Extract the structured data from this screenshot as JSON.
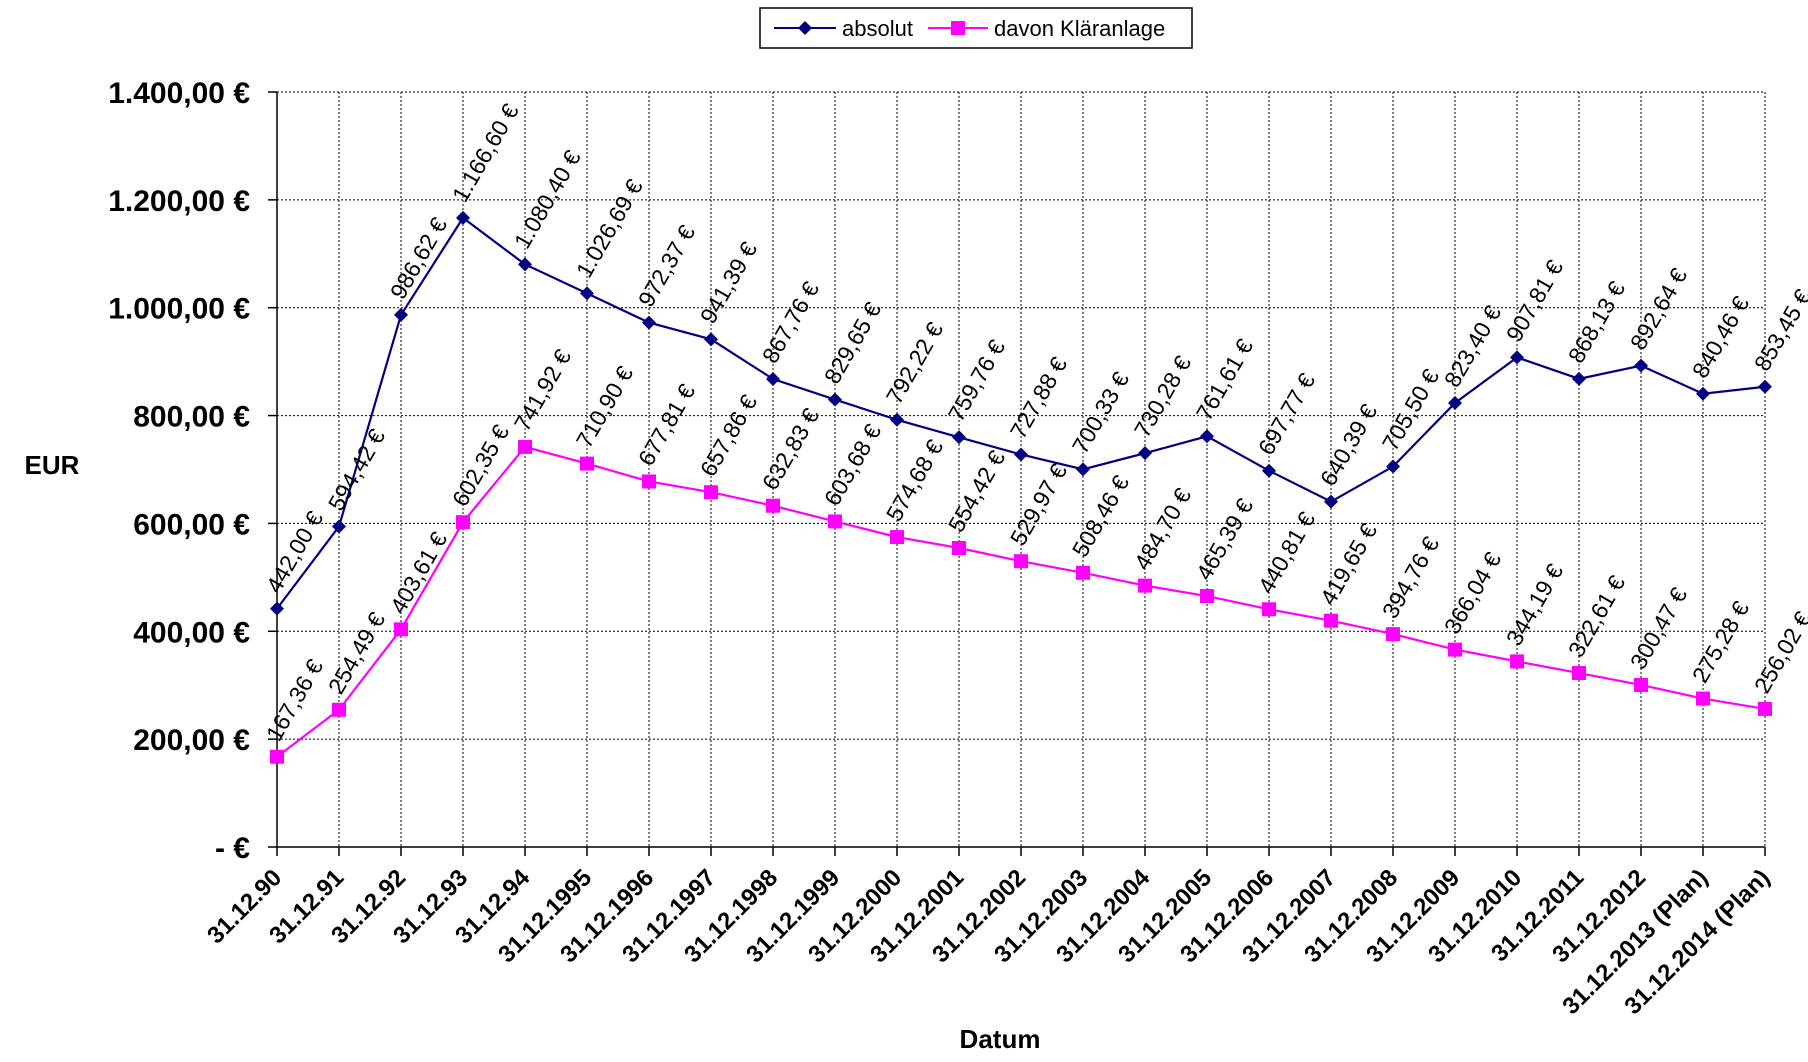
{
  "chart_data": {
    "type": "line",
    "xlabel": "Datum",
    "ylabel": "EUR",
    "ylim": [
      0,
      1400
    ],
    "grid": true,
    "legend_position": "top-center",
    "y_ticks": [
      "-   €",
      "200,00 €",
      "400,00 €",
      "600,00 €",
      "800,00 €",
      "1.000,00 €",
      "1.200,00 €",
      "1.400,00 €"
    ],
    "categories": [
      "31.12.90",
      "31.12.91",
      "31.12.92",
      "31.12.93",
      "31.12.94",
      "31.12.1995",
      "31.12.1996",
      "31.12.1997",
      "31.12.1998",
      "31.12.1999",
      "31.12.2000",
      "31.12.2001",
      "31.12.2002",
      "31.12.2003",
      "31.12.2004",
      "31.12.2005",
      "31.12.2006",
      "31.12.2007",
      "31.12.2008",
      "31.12.2009",
      "31.12.2010",
      "31.12.2011",
      "31.12.2012",
      "31.12.2013 (Plan)",
      "31.12.2014 (Plan)"
    ],
    "series": [
      {
        "name": "absolut",
        "color": "#000080",
        "marker": "diamond",
        "values": [
          442.0,
          594.42,
          986.62,
          1166.6,
          1080.4,
          1026.69,
          972.37,
          941.39,
          867.76,
          829.65,
          792.22,
          759.76,
          727.88,
          700.33,
          730.28,
          761.61,
          697.77,
          640.39,
          705.5,
          823.4,
          907.81,
          868.13,
          892.64,
          840.46,
          853.45
        ],
        "labels": [
          "442,00 €",
          "594,42 €",
          "986,62 €",
          "1.166,60 €",
          "1.080,40 €",
          "1.026,69 €",
          "972,37 €",
          "941,39 €",
          "867,76 €",
          "829,65 €",
          "792,22 €",
          "759,76 €",
          "727,88 €",
          "700,33 €",
          "730,28 €",
          "761,61 €",
          "697,77 €",
          "640,39 €",
          "705,50 €",
          "823,40 €",
          "907,81 €",
          "868,13 €",
          "892,64 €",
          "840,46 €",
          "853,45 €"
        ]
      },
      {
        "name": "davon Kläranlage",
        "color": "#FF00FF",
        "marker": "square",
        "values": [
          167.36,
          254.49,
          403.61,
          602.35,
          741.92,
          710.9,
          677.81,
          657.86,
          632.83,
          603.68,
          574.68,
          554.42,
          529.97,
          508.46,
          484.7,
          465.39,
          440.81,
          419.65,
          394.76,
          366.04,
          344.19,
          322.61,
          300.47,
          275.28,
          256.02
        ],
        "labels": [
          "167,36 €",
          "254,49 €",
          "403,61 €",
          "602,35 €",
          "741,92 €",
          "710,90 €",
          "677,81 €",
          "657,86 €",
          "632,83 €",
          "603,68 €",
          "574,68 €",
          "554,42 €",
          "529,97 €",
          "508,46 €",
          "484,70 €",
          "465,39 €",
          "440,81 €",
          "419,65 €",
          "394,76 €",
          "366,04 €",
          "344,19 €",
          "322,61 €",
          "300,47 €",
          "275,28 €",
          "256,02 €"
        ]
      }
    ]
  }
}
